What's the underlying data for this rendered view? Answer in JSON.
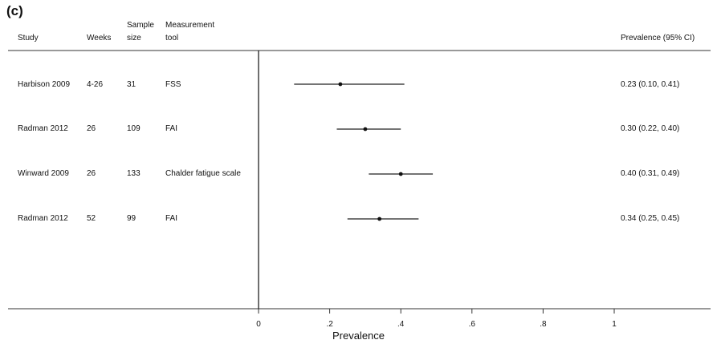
{
  "panel_label": "(c)",
  "columns": {
    "study": "Study",
    "weeks": "Weeks",
    "sample_top": "Sample",
    "sample_bottom": "size",
    "tool_top": "Measurement",
    "tool_bottom": "tool",
    "ci": "Prevalence (95% CI)"
  },
  "rows": [
    {
      "study": "Harbison 2009",
      "weeks": "4-26",
      "size": "31",
      "tool": "FSS",
      "ci_text": "0.23 (0.10, 0.41)"
    },
    {
      "study": "Radman 2012",
      "weeks": "26",
      "size": "109",
      "tool": "FAI",
      "ci_text": "0.30 (0.22, 0.40)"
    },
    {
      "study": "Winward 2009",
      "weeks": "26",
      "size": "133",
      "tool": "Chalder fatigue scale",
      "ci_text": "0.40 (0.31, 0.49)"
    },
    {
      "study": "Radman 2012",
      "weeks": "52",
      "size": "99",
      "tool": "FAI",
      "ci_text": "0.34 (0.25, 0.45)"
    }
  ],
  "chart_data": {
    "type": "forest",
    "xlabel": "Prevalence",
    "xlim": [
      0,
      1
    ],
    "ticks": [
      0,
      0.2,
      0.4,
      0.6,
      0.8,
      1
    ],
    "tick_labels": [
      "0",
      ".2",
      ".4",
      ".6",
      ".8",
      "1"
    ],
    "points": [
      {
        "label": "Harbison 2009",
        "estimate": 0.23,
        "lower": 0.1,
        "upper": 0.41
      },
      {
        "label": "Radman 2012",
        "estimate": 0.3,
        "lower": 0.22,
        "upper": 0.4
      },
      {
        "label": "Winward 2009",
        "estimate": 0.4,
        "lower": 0.31,
        "upper": 0.49
      },
      {
        "label": "Radman 2012",
        "estimate": 0.34,
        "lower": 0.25,
        "upper": 0.45
      }
    ]
  }
}
